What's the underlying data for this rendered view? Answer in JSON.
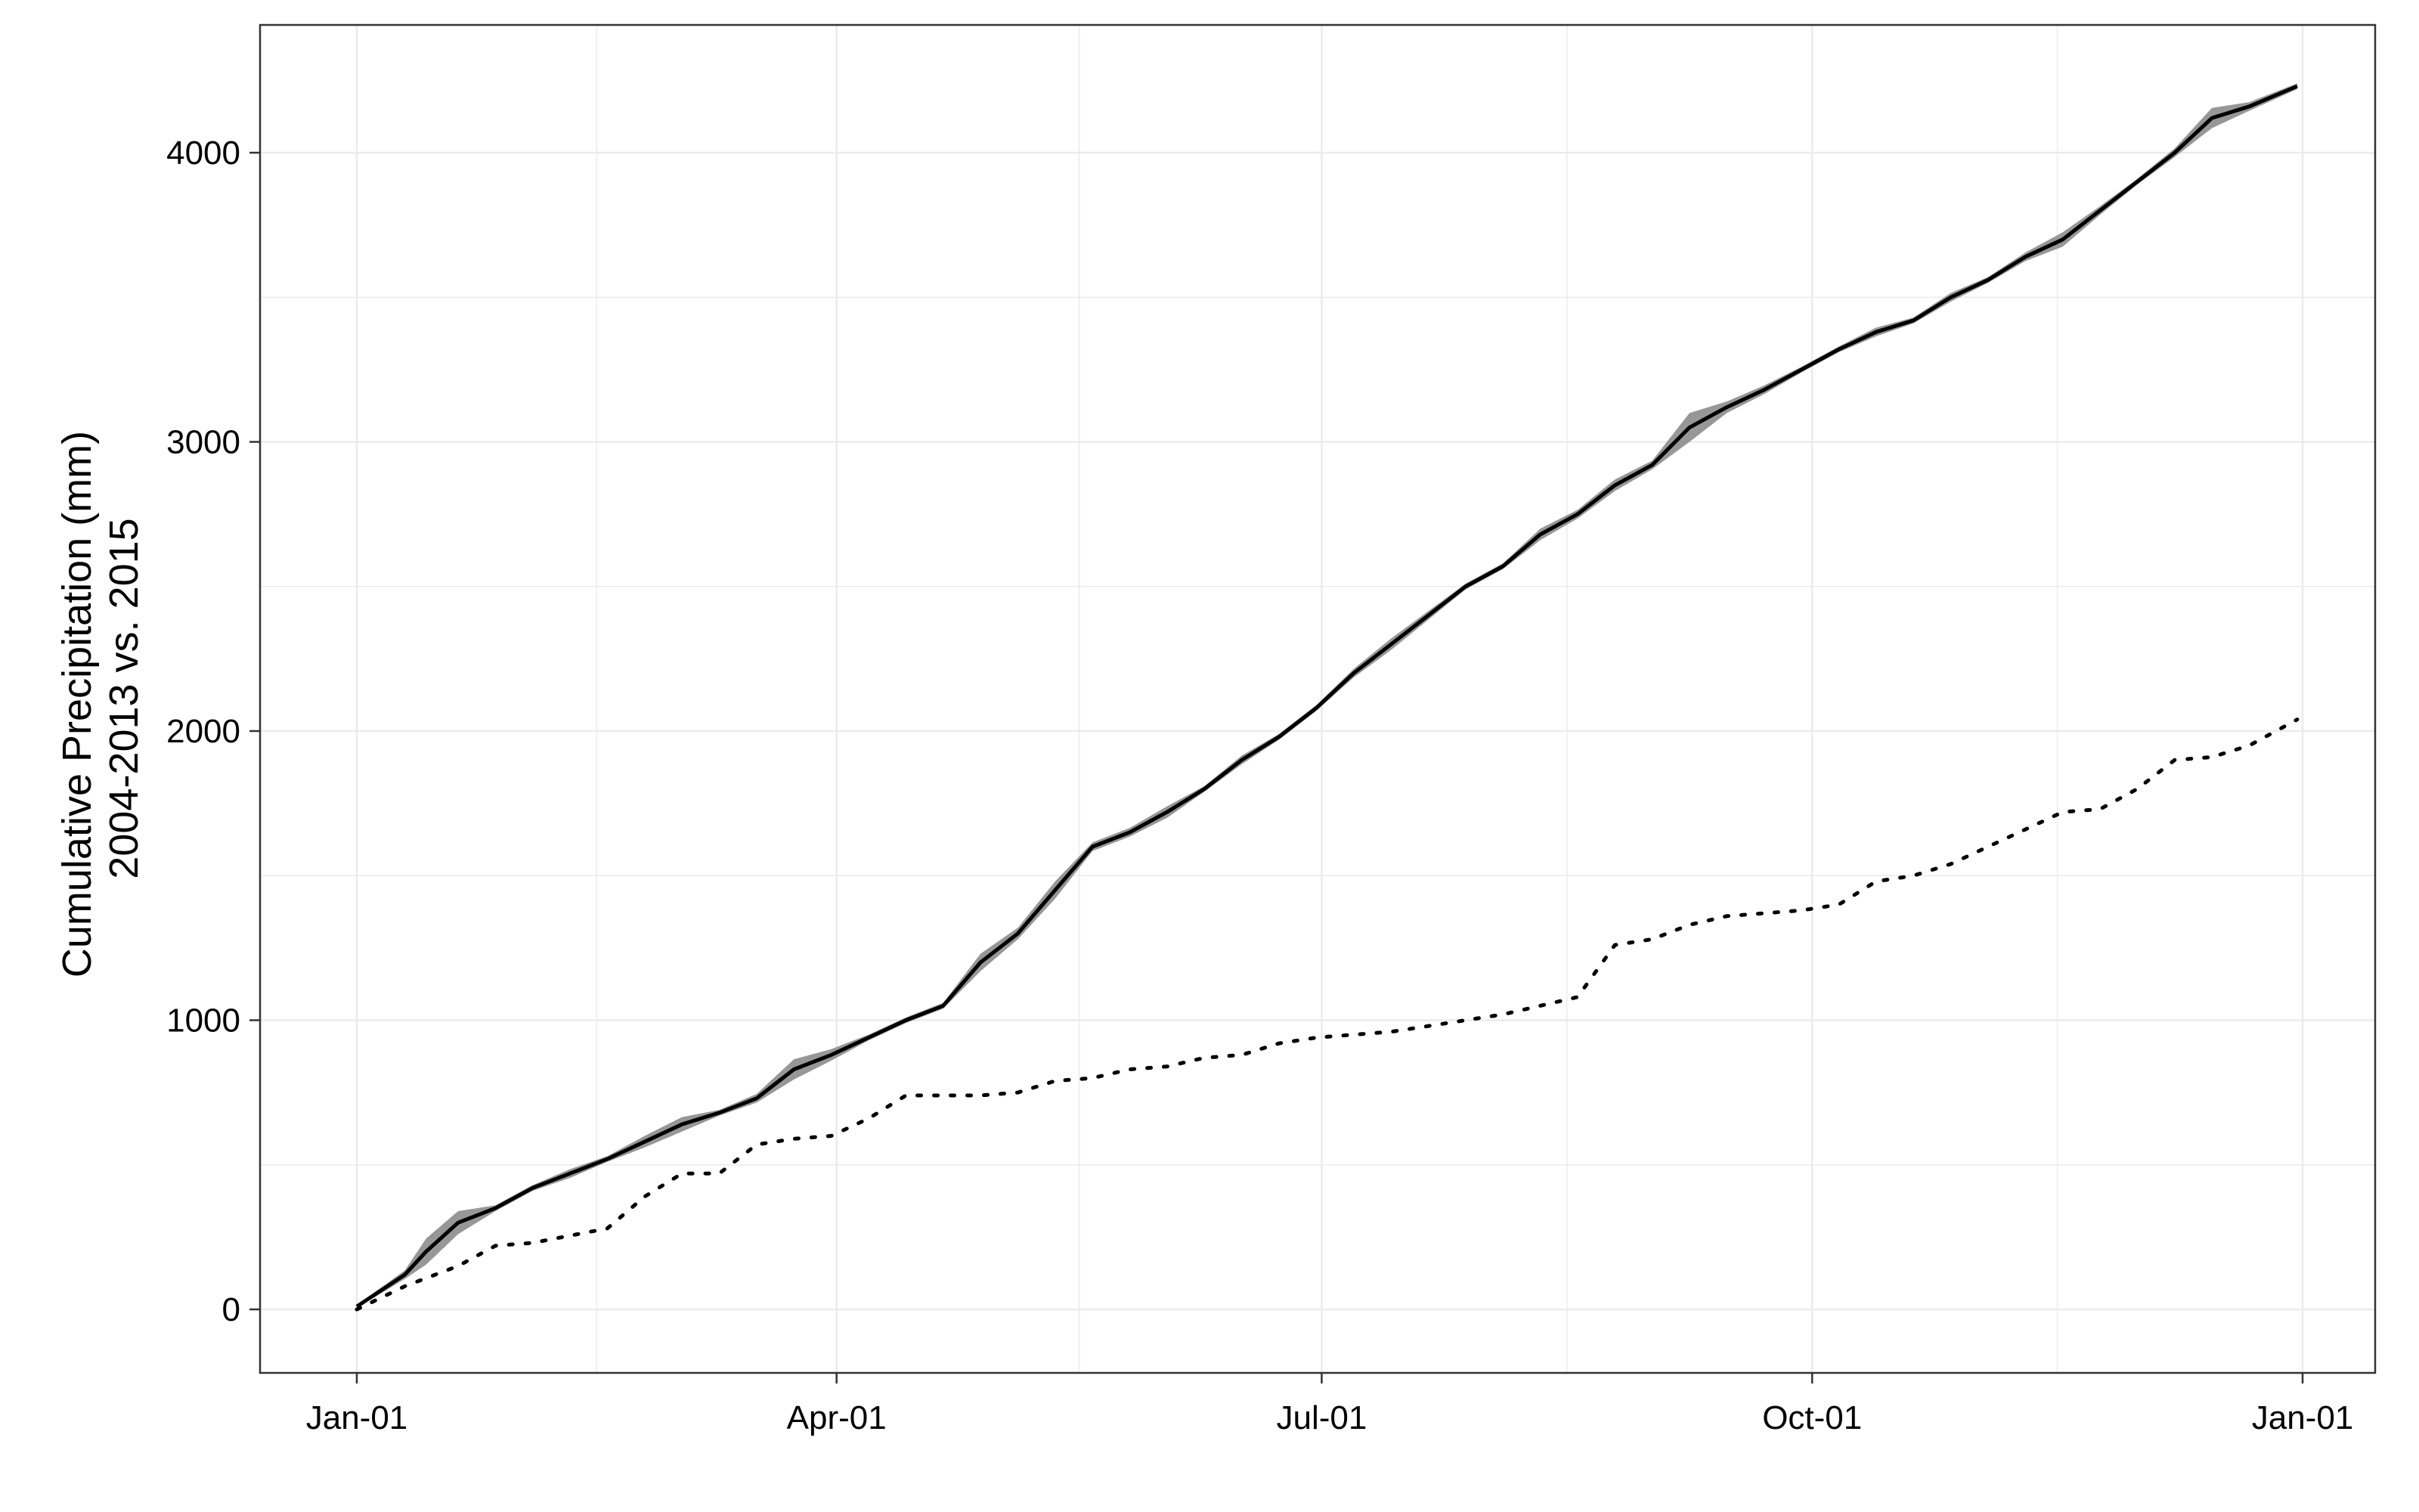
{
  "chart_data": {
    "type": "line",
    "title": "",
    "xlabel": "",
    "ylabel_lines": [
      "Cumulative Precipitation (mm)",
      "2004-2013 vs. 2015"
    ],
    "x_axis": {
      "type": "date",
      "range": [
        "2015-01-01",
        "2016-01-01"
      ],
      "ticks": [
        {
          "date": "2015-01-01",
          "label": "Jan-01"
        },
        {
          "date": "2015-04-01",
          "label": "Apr-01"
        },
        {
          "date": "2015-07-01",
          "label": "Jul-01"
        },
        {
          "date": "2015-10-01",
          "label": "Oct-01"
        },
        {
          "date": "2016-01-01",
          "label": "Jan-01"
        }
      ]
    },
    "y_axis": {
      "range": [
        -200,
        4450
      ],
      "ticks": [
        0,
        1000,
        2000,
        3000,
        4000
      ],
      "tick_labels": [
        "0",
        "1000",
        "2000",
        "3000",
        "4000"
      ]
    },
    "grid": true,
    "legend": "none",
    "colors": {
      "mean_line": "#000000",
      "ribbon": "#8c8c8c",
      "dotted_line": "#000000",
      "grid": "#ebebeb",
      "panel_border": "#333333"
    },
    "series": [
      {
        "style": "solid",
        "ribbon": true,
        "x": [
          "2015-01-01",
          "2015-01-10",
          "2015-01-14",
          "2015-01-20",
          "2015-01-27",
          "2015-02-03",
          "2015-02-10",
          "2015-02-17",
          "2015-02-24",
          "2015-03-03",
          "2015-03-10",
          "2015-03-17",
          "2015-03-24",
          "2015-03-31",
          "2015-04-07",
          "2015-04-14",
          "2015-04-21",
          "2015-04-28",
          "2015-05-05",
          "2015-05-12",
          "2015-05-19",
          "2015-05-26",
          "2015-06-02",
          "2015-06-09",
          "2015-06-16",
          "2015-06-23",
          "2015-06-30",
          "2015-07-07",
          "2015-07-14",
          "2015-07-21",
          "2015-07-28",
          "2015-08-04",
          "2015-08-11",
          "2015-08-18",
          "2015-08-25",
          "2015-09-01",
          "2015-09-08",
          "2015-09-15",
          "2015-09-22",
          "2015-09-29",
          "2015-10-06",
          "2015-10-13",
          "2015-10-20",
          "2015-10-27",
          "2015-11-03",
          "2015-11-10",
          "2015-11-17",
          "2015-11-24",
          "2015-12-01",
          "2015-12-08",
          "2015-12-15",
          "2015-12-22",
          "2015-12-31"
        ],
        "y": [
          10,
          120,
          200,
          300,
          350,
          420,
          470,
          520,
          580,
          640,
          680,
          730,
          830,
          880,
          940,
          1000,
          1050,
          1200,
          1300,
          1450,
          1600,
          1650,
          1720,
          1800,
          1900,
          1980,
          2080,
          2200,
          2300,
          2400,
          2500,
          2570,
          2680,
          2750,
          2850,
          2920,
          3050,
          3120,
          3180,
          3250,
          3320,
          3380,
          3420,
          3500,
          3560,
          3640,
          3700,
          3800,
          3900,
          4000,
          4120,
          4160,
          4230
        ],
        "ribbon_half_width": [
          5,
          15,
          45,
          40,
          10,
          10,
          15,
          10,
          20,
          25,
          10,
          15,
          35,
          20,
          10,
          10,
          10,
          30,
          20,
          30,
          15,
          15,
          20,
          10,
          15,
          10,
          10,
          15,
          20,
          15,
          10,
          10,
          20,
          15,
          20,
          15,
          50,
          20,
          15,
          10,
          10,
          15,
          10,
          15,
          10,
          15,
          25,
          15,
          10,
          15,
          35,
          15,
          10
        ]
      },
      {
        "style": "dotted",
        "ribbon": false,
        "x": [
          "2015-01-01",
          "2015-01-10",
          "2015-01-20",
          "2015-01-27",
          "2015-02-03",
          "2015-02-17",
          "2015-02-24",
          "2015-03-03",
          "2015-03-10",
          "2015-03-17",
          "2015-03-24",
          "2015-03-31",
          "2015-04-07",
          "2015-04-14",
          "2015-04-21",
          "2015-04-28",
          "2015-05-05",
          "2015-05-12",
          "2015-05-19",
          "2015-05-26",
          "2015-06-02",
          "2015-06-09",
          "2015-06-16",
          "2015-06-23",
          "2015-06-30",
          "2015-07-07",
          "2015-07-14",
          "2015-07-21",
          "2015-07-28",
          "2015-08-04",
          "2015-08-11",
          "2015-08-18",
          "2015-08-25",
          "2015-09-01",
          "2015-09-08",
          "2015-09-15",
          "2015-09-22",
          "2015-09-29",
          "2015-10-06",
          "2015-10-13",
          "2015-10-20",
          "2015-10-27",
          "2015-11-03",
          "2015-11-10",
          "2015-11-17",
          "2015-11-24",
          "2015-12-01",
          "2015-12-08",
          "2015-12-15",
          "2015-12-22",
          "2015-12-31"
        ],
        "y": [
          0,
          80,
          150,
          220,
          230,
          280,
          390,
          470,
          470,
          570,
          590,
          600,
          660,
          740,
          740,
          740,
          750,
          790,
          800,
          830,
          840,
          870,
          880,
          920,
          940,
          950,
          960,
          980,
          1000,
          1020,
          1050,
          1080,
          1260,
          1280,
          1330,
          1360,
          1370,
          1380,
          1400,
          1480,
          1500,
          1540,
          1600,
          1660,
          1720,
          1730,
          1800,
          1900,
          1910,
          1950,
          2040
        ]
      }
    ]
  }
}
